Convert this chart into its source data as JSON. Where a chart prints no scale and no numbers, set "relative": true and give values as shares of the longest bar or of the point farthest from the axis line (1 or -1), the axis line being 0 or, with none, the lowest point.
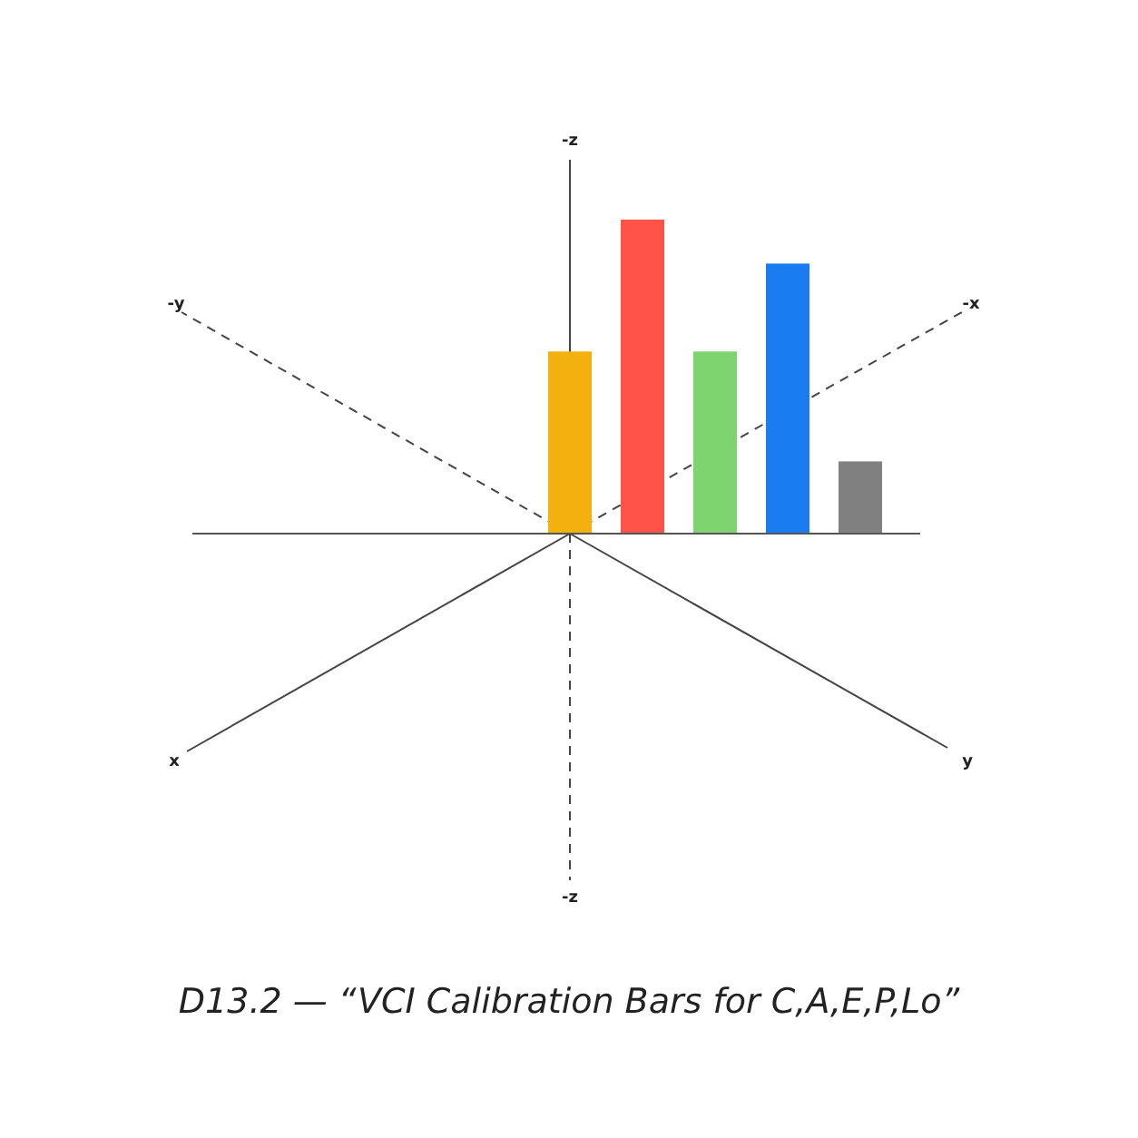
{
  "chart_data": {
    "type": "bar",
    "title": "D13.2 — “VCI Calibration Bars for C,A,E,P,Lo”",
    "relative": true,
    "categories": [
      null,
      null,
      null,
      null,
      null
    ],
    "values": [
      0.58,
      1,
      0.58,
      0.86,
      0.23
    ],
    "colors": [
      "#f4b00f",
      "#ff5249",
      "#7ed46e",
      "#1a7cf0",
      "#808080"
    ],
    "annotations": [
      "-z",
      "-y",
      "-x",
      "x",
      "y",
      "-z"
    ]
  }
}
